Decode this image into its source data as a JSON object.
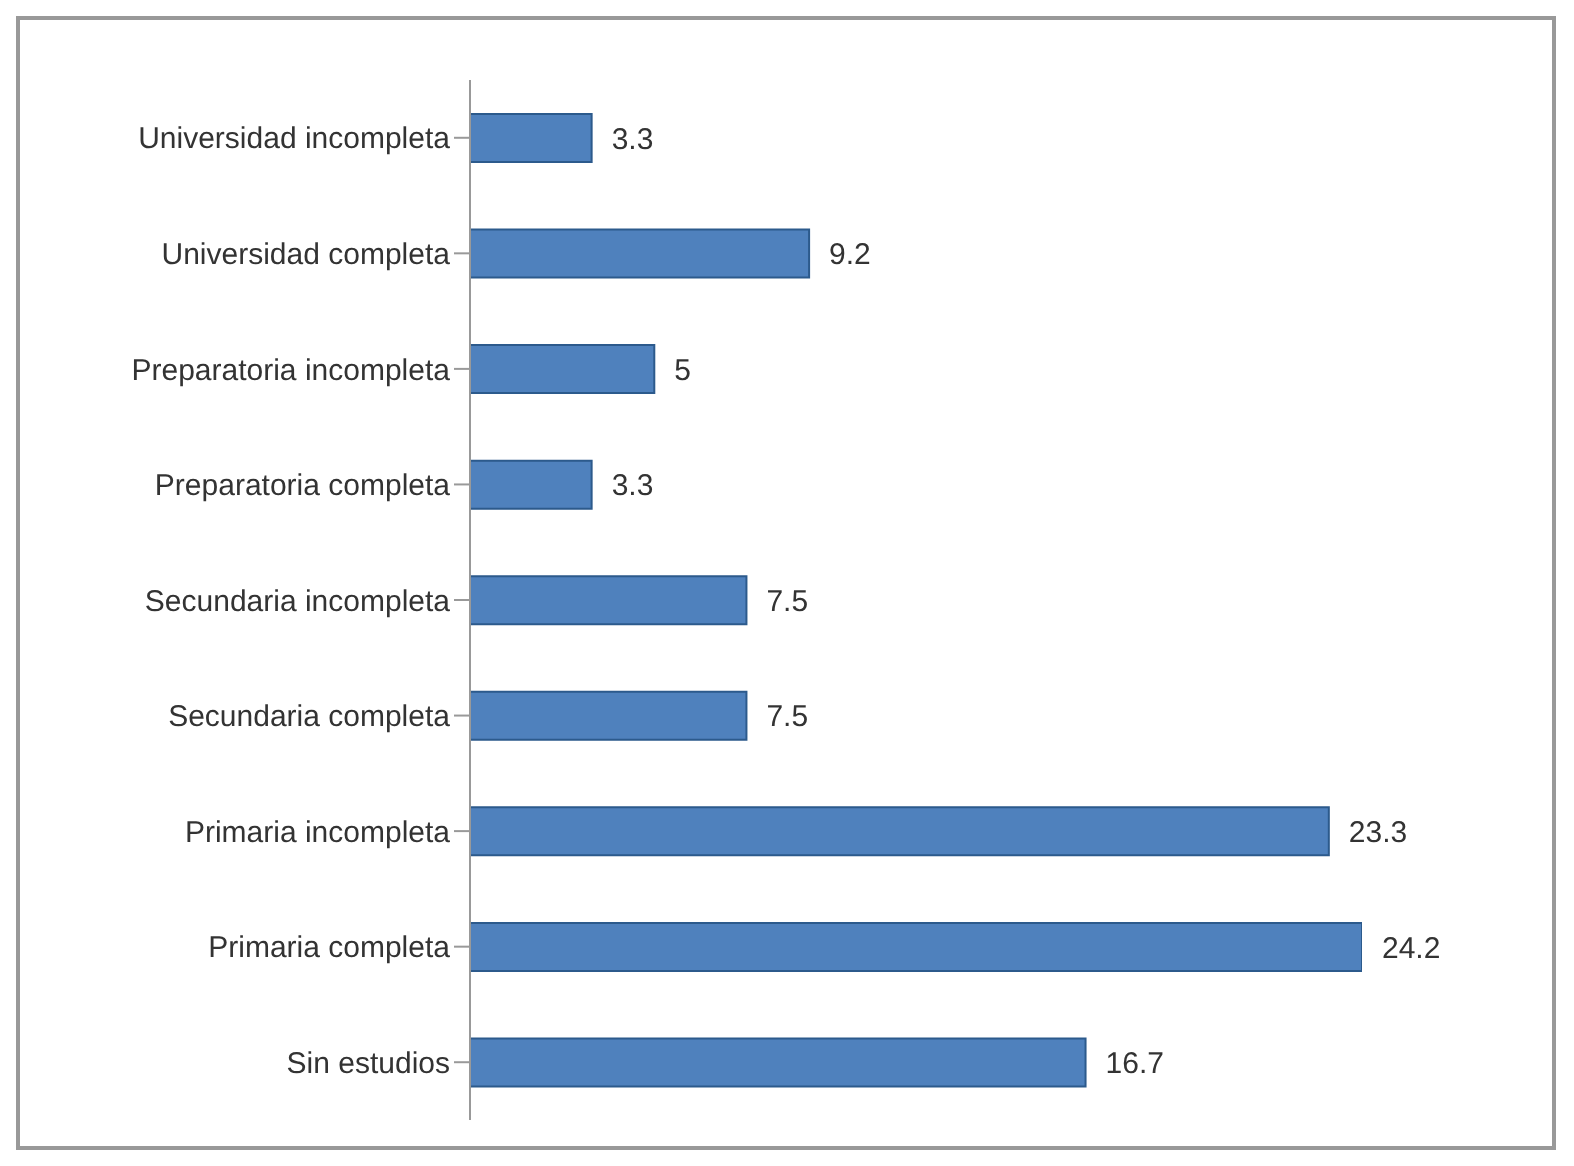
{
  "chart_data": {
    "type": "bar",
    "orientation": "horizontal",
    "categories": [
      "Universidad incompleta",
      "Universidad completa",
      "Preparatoria incompleta",
      "Preparatoria completa",
      "Secundaria incompleta",
      "Secundaria completa",
      "Primaria incompleta",
      "Primaria completa",
      "Sin estudios"
    ],
    "values": [
      3.3,
      9.2,
      5,
      3.3,
      7.5,
      7.5,
      23.3,
      24.2,
      16.7
    ],
    "color": "#4f81bd",
    "data_labels": true,
    "tick_labels": "y",
    "grid": false
  }
}
